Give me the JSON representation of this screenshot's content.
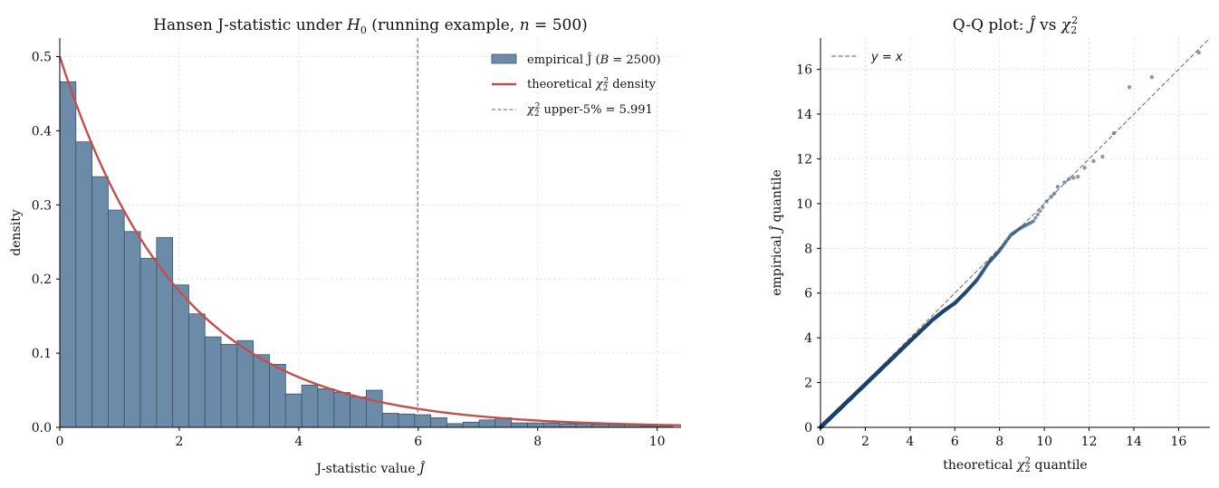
{
  "chart_data": [
    {
      "type": "bar",
      "title": "Hansen J-statistic under H₀  (running example, n = 500)",
      "title_parts": {
        "a": "Hansen J-statistic under ",
        "b": "H",
        "c": "0",
        "d": "  (running example, ",
        "e": "n",
        "f": " = 500)"
      },
      "xlabel": "J-statistic value Ĵ",
      "xlabel_parts": {
        "a": "J-statistic value ",
        "b": "Ĵ"
      },
      "ylabel": "density",
      "xlim": [
        0,
        10.4
      ],
      "ylim": [
        0,
        0.525
      ],
      "xticks": [
        0,
        2,
        4,
        6,
        8,
        10
      ],
      "yticks": [
        0.0,
        0.1,
        0.2,
        0.3,
        0.4,
        0.5
      ],
      "grid": true,
      "legend_position": "top-right",
      "bin_width": 0.27,
      "bin_start": 0,
      "values": [
        0.466,
        0.385,
        0.338,
        0.293,
        0.264,
        0.228,
        0.256,
        0.192,
        0.153,
        0.122,
        0.112,
        0.117,
        0.098,
        0.085,
        0.045,
        0.057,
        0.052,
        0.047,
        0.041,
        0.05,
        0.019,
        0.018,
        0.017,
        0.013,
        0.005,
        0.007,
        0.01,
        0.013,
        0.006,
        0.006,
        0.006,
        0.005,
        0.005,
        0.004,
        0.003,
        0.003,
        0.002,
        0.002
      ],
      "critical_value": 5.991,
      "legend": {
        "hist": {
          "a": "empirical Ĵ  (",
          "b": "B",
          "c": " = 2500)"
        },
        "density": {
          "a": "theoretical ",
          "b": "χ",
          "c": "2",
          "d": "2",
          "e": " density"
        },
        "crit": {
          "a": "χ",
          "b": "2",
          "c": "2",
          "d": " upper-5% = 5.991"
        }
      },
      "colors": {
        "bar": "#6b8ba8",
        "bar_edge": "#3d5366",
        "density": "#c0504d",
        "crit": "#7f7f7f"
      }
    },
    {
      "type": "scatter",
      "title": "Q-Q plot:  Ĵ vs χ²₂",
      "title_parts": {
        "a": "Q-Q plot:  ",
        "b": "Ĵ",
        "c": " vs ",
        "d": "χ",
        "e": "2",
        "f": "2"
      },
      "xlabel": "theoretical χ²₂ quantile",
      "xlabel_parts": {
        "a": "theoretical ",
        "b": "χ",
        "c": "2",
        "d": "2",
        "e": " quantile"
      },
      "ylabel": "empirical Ĵ quantile",
      "ylabel_parts": {
        "a": "empirical ",
        "b": "Ĵ",
        "c": " quantile"
      },
      "xlim": [
        0,
        17.4
      ],
      "ylim": [
        0,
        17.4
      ],
      "xticks": [
        0,
        2,
        4,
        6,
        8,
        10,
        12,
        14,
        16
      ],
      "yticks": [
        0,
        2,
        4,
        6,
        8,
        10,
        12,
        14,
        16
      ],
      "grid": true,
      "legend_position": "top-left",
      "legend": {
        "ref": {
          "a": "y",
          "b": " = ",
          "c": "x"
        }
      },
      "knots": [
        [
          0,
          0
        ],
        [
          2,
          1.92
        ],
        [
          4,
          3.85
        ],
        [
          5,
          4.8
        ],
        [
          5.5,
          5.2
        ],
        [
          6,
          5.55
        ],
        [
          6.5,
          6.05
        ],
        [
          7.0,
          6.6
        ],
        [
          7.5,
          7.35
        ],
        [
          8,
          7.9
        ],
        [
          8.5,
          8.6
        ],
        [
          9,
          8.95
        ],
        [
          9.5,
          9.2
        ],
        [
          10,
          9.95
        ]
      ],
      "n_points": 2500,
      "tail_points": [
        [
          10.1,
          10.1
        ],
        [
          10.3,
          10.3
        ],
        [
          10.45,
          10.45
        ],
        [
          10.6,
          10.75
        ],
        [
          10.9,
          10.95
        ],
        [
          11.1,
          11.1
        ],
        [
          11.3,
          11.15
        ],
        [
          11.5,
          11.2
        ],
        [
          11.8,
          11.6
        ],
        [
          12.2,
          11.9
        ],
        [
          12.6,
          12.1
        ],
        [
          13.1,
          13.15
        ],
        [
          13.8,
          15.2
        ],
        [
          14.8,
          15.65
        ],
        [
          16.9,
          16.75
        ]
      ],
      "colors": {
        "point": "#1f4570",
        "ref": "#7f7f7f"
      }
    }
  ]
}
